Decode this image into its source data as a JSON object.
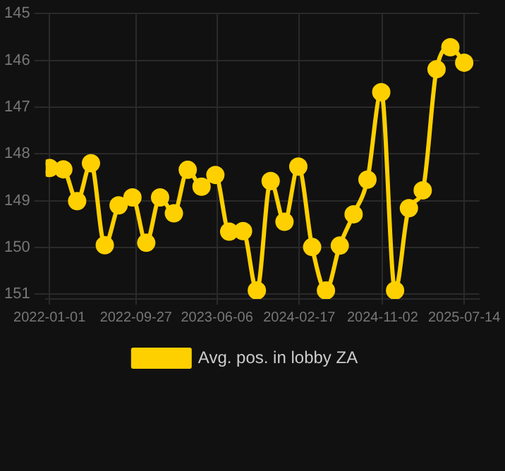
{
  "chart_data": {
    "type": "line",
    "x": [
      "2022-01-01",
      "2022-02-13",
      "2022-03-28",
      "2022-05-10",
      "2022-06-22",
      "2022-08-04",
      "2022-09-16",
      "2022-10-29",
      "2022-12-11",
      "2023-01-23",
      "2023-03-07",
      "2023-04-19",
      "2023-06-01",
      "2023-07-14",
      "2023-08-26",
      "2023-10-08",
      "2023-11-20",
      "2024-01-02",
      "2024-02-14",
      "2024-03-28",
      "2024-05-10",
      "2024-06-22",
      "2024-08-04",
      "2024-09-16",
      "2024-10-29",
      "2024-12-11",
      "2025-01-23",
      "2025-03-07",
      "2025-04-19",
      "2025-06-01",
      "2025-07-14"
    ],
    "series": [
      {
        "name": "Avg. pos. in lobby ZA",
        "color": "#ffd000",
        "values": [
          148.3,
          148.33,
          149.01,
          148.2,
          149.95,
          149.1,
          148.93,
          149.9,
          148.93,
          149.27,
          148.34,
          148.7,
          148.45,
          149.66,
          149.65,
          150.92,
          148.58,
          149.45,
          148.27,
          149.99,
          150.92,
          149.96,
          149.29,
          148.55,
          146.68,
          150.92,
          149.16,
          148.78,
          146.19,
          145.72,
          146.05
        ]
      }
    ],
    "xlim": [
      "2021-12-20",
      "2025-08-30"
    ],
    "xticks": [
      {
        "value": "2022-01-01",
        "label": "2022-01-01"
      },
      {
        "value": "2022-09-27",
        "label": "2022-09-27"
      },
      {
        "value": "2023-06-06",
        "label": "2023-06-06"
      },
      {
        "value": "2024-02-17",
        "label": "2024-02-17"
      },
      {
        "value": "2024-11-02",
        "label": "2024-11-02"
      },
      {
        "value": "2025-07-14",
        "label": "2025-07-14"
      }
    ],
    "ylim": [
      151.1,
      145
    ],
    "yticks": [
      145,
      146,
      147,
      148,
      149,
      150,
      151
    ],
    "grid": true,
    "legend": "bottom",
    "marker": "circle",
    "line_style": "solid"
  }
}
